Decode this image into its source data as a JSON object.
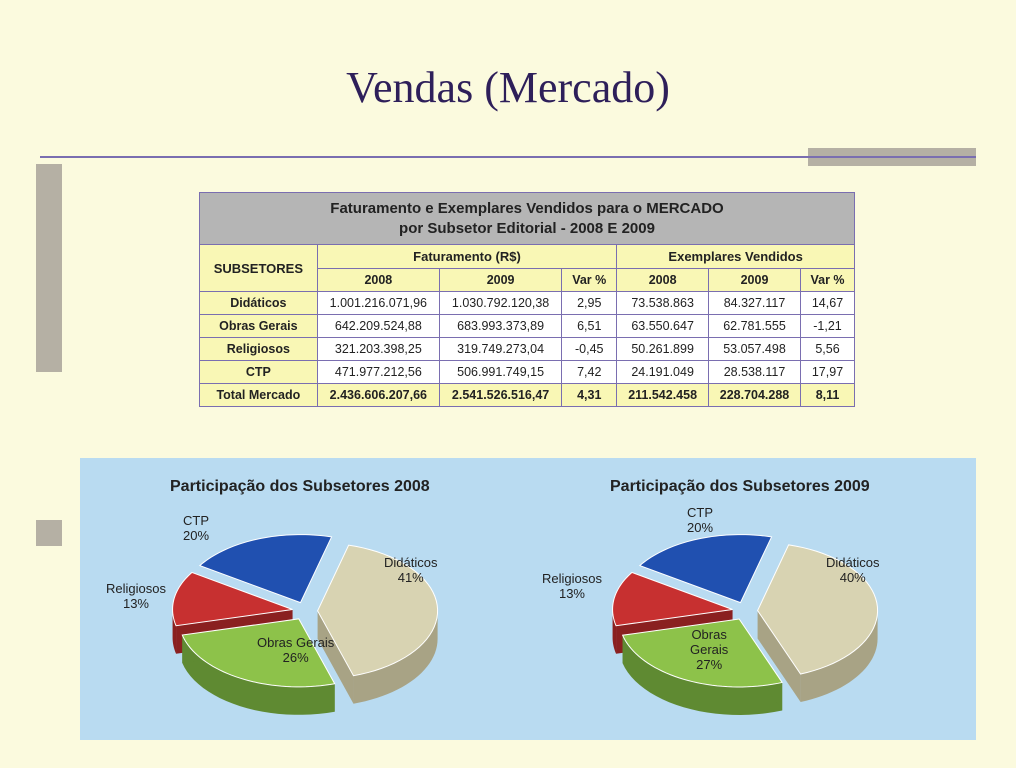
{
  "title": "Vendas (Mercado)",
  "table": {
    "header_line1": "Faturamento e Exemplares Vendidos para o MERCADO",
    "header_line2": "por Subsetor Editorial - 2008 E 2009",
    "subsetores_label": "SUBSETORES",
    "faturamento_label": "Faturamento (R$)",
    "exemplares_label": "Exemplares Vendidos",
    "year1": "2008",
    "year2": "2009",
    "var_label": "Var %",
    "rows": [
      {
        "label": "Didáticos",
        "f1": "1.001.216.071,96",
        "f2": "1.030.792.120,38",
        "fv": "2,95",
        "e1": "73.538.863",
        "e2": "84.327.117",
        "ev": "14,67"
      },
      {
        "label": "Obras Gerais",
        "f1": "642.209.524,88",
        "f2": "683.993.373,89",
        "fv": "6,51",
        "e1": "63.550.647",
        "e2": "62.781.555",
        "ev": "-1,21"
      },
      {
        "label": "Religiosos",
        "f1": "321.203.398,25",
        "f2": "319.749.273,04",
        "fv": "-0,45",
        "e1": "50.261.899",
        "e2": "53.057.498",
        "ev": "5,56"
      },
      {
        "label": "CTP",
        "f1": "471.977.212,56",
        "f2": "506.991.749,15",
        "fv": "7,42",
        "e1": "24.191.049",
        "e2": "28.538.117",
        "ev": "17,97"
      }
    ],
    "total": {
      "label": "Total Mercado",
      "f1": "2.436.606.207,66",
      "f2": "2.541.526.516,47",
      "fv": "4,31",
      "e1": "211.542.458",
      "e2": "228.704.288",
      "ev": "8,11"
    }
  },
  "charts": {
    "left": {
      "title": "Participação  dos  Subsetores   2008",
      "slices": [
        {
          "label": "Didáticos",
          "pct": 41,
          "color": "#d8d3b2",
          "dark": "#a8a385"
        },
        {
          "label": "Obras Gerais",
          "pct": 26,
          "color": "#8dc24a",
          "dark": "#5f8a32"
        },
        {
          "label": "Religiosos",
          "pct": 13,
          "color": "#c73030",
          "dark": "#8a2020"
        },
        {
          "label": "CTP",
          "pct": 20,
          "color": "#2050b0",
          "dark": "#163878"
        }
      ]
    },
    "right": {
      "title": "Participação  dos  Subsetores   2009",
      "slices": [
        {
          "label": "Didáticos",
          "pct": 40,
          "color": "#d8d3b2",
          "dark": "#a8a385"
        },
        {
          "label": "Obras\nGerais",
          "pct": 27,
          "color": "#8dc24a",
          "dark": "#5f8a32"
        },
        {
          "label": "Religiosos",
          "pct": 13,
          "color": "#c73030",
          "dark": "#8a2020"
        },
        {
          "label": "CTP",
          "pct": 20,
          "color": "#2050b0",
          "dark": "#163878"
        }
      ]
    },
    "chart_background": "#b9dbf1",
    "label_fontsize": 13,
    "title_fontsize": 16
  },
  "colors": {
    "page_bg": "#fbfade",
    "title_color": "#2e1f5a",
    "accent_bar": "#b5b0a4",
    "accent_line": "#7a6eb0",
    "table_header_bg": "#b5b5b5",
    "table_yellow": "#f9f7b5",
    "table_border": "#7a6eb0"
  }
}
